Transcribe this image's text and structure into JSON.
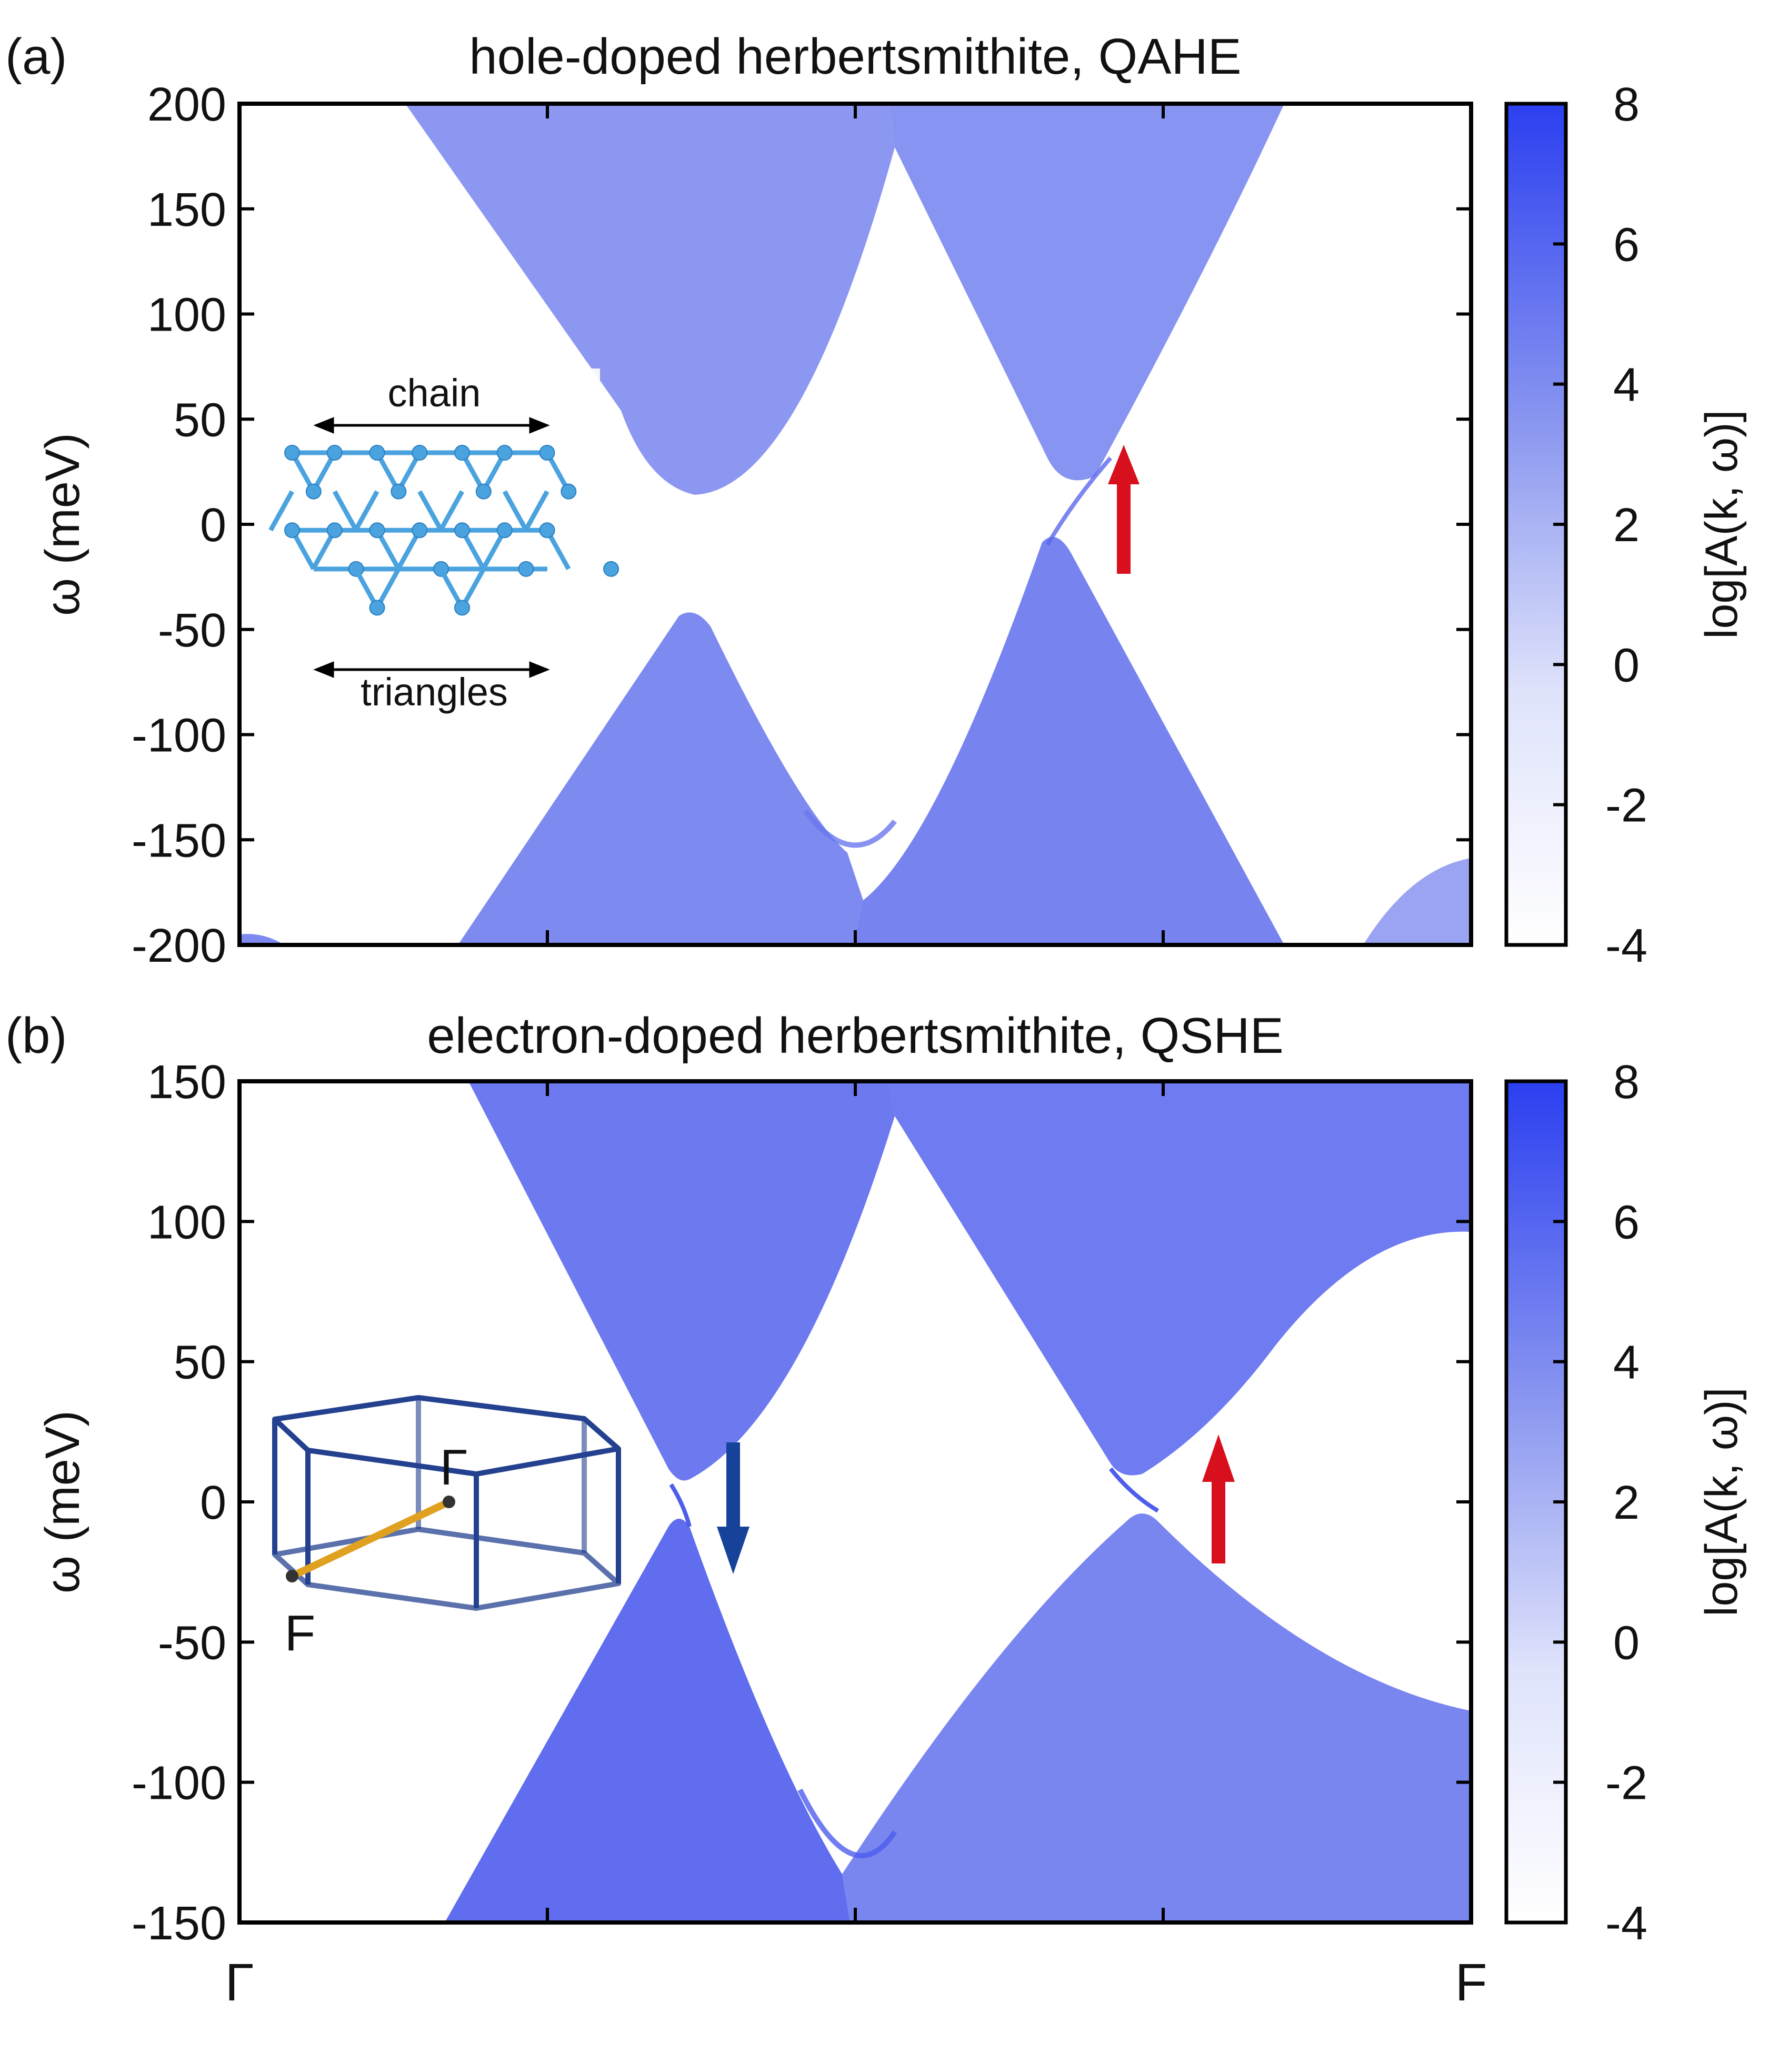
{
  "chart_data": [
    {
      "type": "heatmap",
      "panel_label": "(a)",
      "title": "hole-doped herbertsmithite, QAHE",
      "xlabel": "",
      "ylabel": "ω (meV)",
      "ylim": [
        -200,
        200
      ],
      "yticks": [
        "200",
        "150",
        "100",
        "50",
        "0",
        "-50",
        "-100",
        "-150",
        "-200"
      ],
      "ytick_values": [
        200,
        150,
        100,
        50,
        0,
        -50,
        -100,
        -150,
        -200
      ],
      "colorbar": {
        "label": "log[A(k, ω)]",
        "range": [
          -4,
          8
        ],
        "ticks": [
          "8",
          "6",
          "4",
          "2",
          "0",
          "-2",
          "-4"
        ],
        "tick_values": [
          8,
          6,
          4,
          2,
          0,
          -2,
          -4
        ],
        "color_high": "#2b3ff0",
        "color_low": "#ffffff"
      },
      "inset": {
        "type": "kagome-lattice",
        "label_top": "chain",
        "label_bottom": "triangles",
        "color": "#4aa3df"
      },
      "arrows": [
        {
          "direction": "up",
          "color": "#d8101e",
          "k": 0.72,
          "omega": -20
        }
      ],
      "bands": [
        {
          "name": "upper-left cone",
          "apex_k": 0.37,
          "apex_omega": 15
        },
        {
          "name": "upper-right cone",
          "apex_k": 0.66,
          "apex_omega": 20
        },
        {
          "name": "lower-left cone",
          "apex_k": 0.36,
          "apex_omega": -43
        },
        {
          "name": "lower-right cone",
          "apex_k": 0.66,
          "apex_omega": -8
        },
        {
          "name": "edge state",
          "from_omega": -10,
          "to_omega": 20
        }
      ]
    },
    {
      "type": "heatmap",
      "panel_label": "(b)",
      "title": "electron-doped herbertsmithite, QSHE",
      "xlabel": "",
      "ylabel": "ω (meV)",
      "ylim": [
        -150,
        150
      ],
      "yticks": [
        "150",
        "100",
        "50",
        "0",
        "-50",
        "-100",
        "-150"
      ],
      "ytick_values": [
        150,
        100,
        50,
        0,
        -50,
        -100,
        -150
      ],
      "xtick_labels": [
        "Γ",
        "F"
      ],
      "colorbar": {
        "label": "log[A(k, ω)]",
        "range": [
          -4,
          8
        ],
        "ticks": [
          "8",
          "6",
          "4",
          "2",
          "0",
          "-2",
          "-4"
        ],
        "tick_values": [
          8,
          6,
          4,
          2,
          0,
          -2,
          -4
        ],
        "color_high": "#2b3ff0",
        "color_low": "#ffffff"
      },
      "inset": {
        "type": "brillouin-zone",
        "point_top": "Γ",
        "point_bottom": "F",
        "edge_color": "#24418f",
        "path_color": "#e0a020"
      },
      "arrows": [
        {
          "direction": "down",
          "color": "#17429a",
          "k": 0.4,
          "omega": 0
        },
        {
          "direction": "up",
          "color": "#d8101e",
          "k": 0.8,
          "omega": 10
        }
      ],
      "bands": [
        {
          "name": "upper-left cone",
          "apex_k": 0.35,
          "apex_omega": 6
        },
        {
          "name": "upper-right cone",
          "apex_k": 0.73,
          "apex_omega": 8
        },
        {
          "name": "lower-left cone",
          "apex_k": 0.35,
          "apex_omega": -6
        },
        {
          "name": "lower-right cone",
          "apex_k": 0.73,
          "apex_omega": -6
        },
        {
          "name": "edge states",
          "from_omega": -6,
          "to_omega": 6
        }
      ]
    }
  ]
}
